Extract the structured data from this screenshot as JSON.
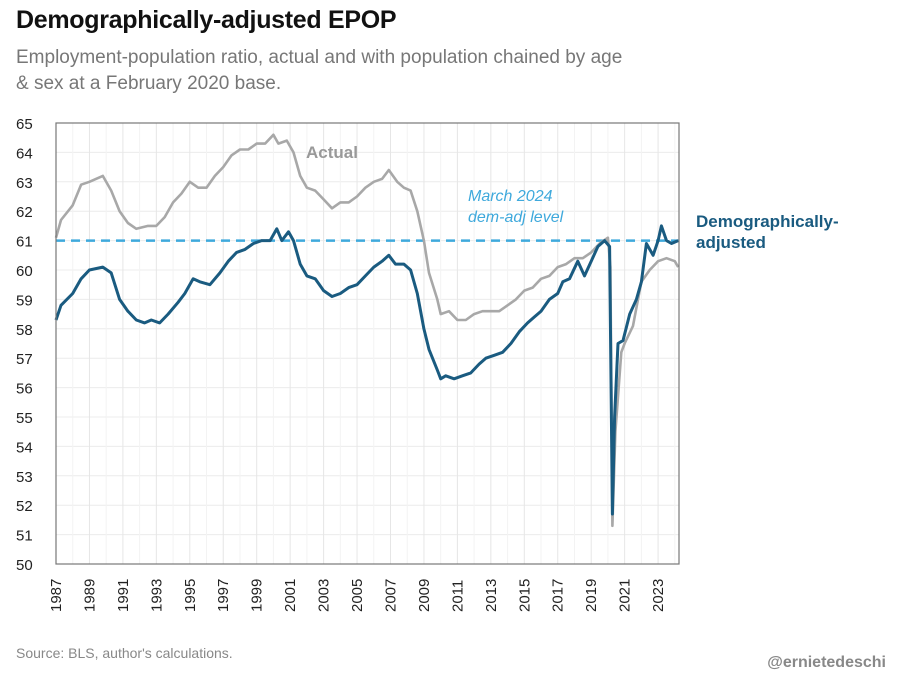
{
  "header": {
    "title": "Demographically-adjusted EPOP",
    "subtitle": "Employment-population ratio, actual and with population chained by age & sex at a February 2020 base."
  },
  "footer": {
    "source": "Source: BLS, author's calculations.",
    "handle": "@ernietedeschi"
  },
  "chart_data": {
    "type": "line",
    "title": "Demographically-adjusted EPOP",
    "xlabel": "",
    "ylabel": "",
    "xlim": [
      1987,
      2024.25
    ],
    "ylim": [
      50,
      65
    ],
    "grid": true,
    "y_ticks": [
      "50",
      "51",
      "52",
      "53",
      "54",
      "55",
      "56",
      "57",
      "58",
      "59",
      "60",
      "61",
      "62",
      "63",
      "64",
      "65"
    ],
    "x_ticks": [
      "1987",
      "1989",
      "1991",
      "1993",
      "1995",
      "1997",
      "1999",
      "2001",
      "2003",
      "2005",
      "2007",
      "2009",
      "2011",
      "2013",
      "2015",
      "2017",
      "2019",
      "2021",
      "2023"
    ],
    "reference_line": {
      "value": 61.0,
      "label_line1": "March 2024",
      "label_line2": "dem-adj level",
      "color": "#3fa9dc"
    },
    "series": [
      {
        "name": "Actual",
        "label": "Actual",
        "color": "#a8a8a8",
        "x": [
          1987.0,
          1987.3,
          1988,
          1988.5,
          1989,
          1989.8,
          1990.3,
          1990.8,
          1991.3,
          1991.8,
          1992.5,
          1993,
          1993.5,
          1994,
          1994.5,
          1995,
          1995.5,
          1996,
          1996.5,
          1997,
          1997.5,
          1998,
          1998.5,
          1999,
          1999.5,
          2000.0,
          2000.3,
          2000.8,
          2001.2,
          2001.6,
          2002,
          2002.5,
          2003,
          2003.5,
          2004,
          2004.5,
          2005,
          2005.5,
          2006,
          2006.5,
          2006.9,
          2007.4,
          2007.8,
          2008.2,
          2008.6,
          2009,
          2009.3,
          2009.8,
          2010.0,
          2010.5,
          2011,
          2011.5,
          2012,
          2012.5,
          2013,
          2013.5,
          2014,
          2014.5,
          2015,
          2015.5,
          2016,
          2016.5,
          2017,
          2017.5,
          2018,
          2018.5,
          2019,
          2019.5,
          2020.0,
          2020.15,
          2020.27,
          2020.45,
          2020.8,
          2021,
          2021.5,
          2021.8,
          2022,
          2022.5,
          2023,
          2023.5,
          2024.0,
          2024.2
        ],
        "values": [
          61.1,
          61.7,
          62.2,
          62.9,
          63.0,
          63.2,
          62.7,
          62.0,
          61.6,
          61.4,
          61.5,
          61.5,
          61.8,
          62.3,
          62.6,
          63.0,
          62.8,
          62.8,
          63.2,
          63.5,
          63.9,
          64.1,
          64.1,
          64.3,
          64.3,
          64.6,
          64.3,
          64.4,
          64.0,
          63.2,
          62.8,
          62.7,
          62.4,
          62.1,
          62.3,
          62.3,
          62.5,
          62.8,
          63.0,
          63.1,
          63.4,
          63.0,
          62.8,
          62.7,
          62.0,
          61.0,
          59.9,
          59.0,
          58.5,
          58.6,
          58.3,
          58.3,
          58.5,
          58.6,
          58.6,
          58.6,
          58.8,
          59.0,
          59.3,
          59.4,
          59.7,
          59.8,
          60.1,
          60.2,
          60.4,
          60.4,
          60.6,
          60.9,
          61.1,
          60.1,
          51.3,
          54.5,
          57.2,
          57.5,
          58.1,
          59.0,
          59.6,
          60.0,
          60.3,
          60.4,
          60.3,
          60.1
        ]
      },
      {
        "name": "Demographically-adjusted",
        "label_line1": "Demographically-",
        "label_line2": "adjusted",
        "color": "#1a5b80",
        "x": [
          1987.0,
          1987.3,
          1988,
          1988.5,
          1989,
          1989.8,
          1990.3,
          1990.8,
          1991.3,
          1991.8,
          1992.3,
          1992.7,
          1993.2,
          1993.7,
          1994.3,
          1994.7,
          1995.2,
          1995.6,
          1996.2,
          1996.8,
          1997.3,
          1997.8,
          1998.3,
          1998.8,
          1999.3,
          1999.8,
          2000.2,
          2000.5,
          2000.9,
          2001.2,
          2001.6,
          2002,
          2002.5,
          2003,
          2003.5,
          2004,
          2004.5,
          2005,
          2005.5,
          2006,
          2006.5,
          2006.9,
          2007.3,
          2007.8,
          2008.2,
          2008.6,
          2009,
          2009.3,
          2009.8,
          2010,
          2010.3,
          2010.8,
          2011.3,
          2011.8,
          2012.3,
          2012.7,
          2013.2,
          2013.7,
          2014.2,
          2014.7,
          2015.2,
          2015.6,
          2016,
          2016.5,
          2017,
          2017.3,
          2017.7,
          2018.2,
          2018.6,
          2019,
          2019.4,
          2019.8,
          2020.1,
          2020.27,
          2020.4,
          2020.6,
          2020.9,
          2021.3,
          2021.7,
          2022,
          2022.3,
          2022.7,
          2023.0,
          2023.2,
          2023.5,
          2023.8,
          2024.2
        ],
        "values": [
          58.3,
          58.8,
          59.2,
          59.7,
          60.0,
          60.1,
          59.9,
          59.0,
          58.6,
          58.3,
          58.2,
          58.3,
          58.2,
          58.5,
          58.9,
          59.2,
          59.7,
          59.6,
          59.5,
          59.9,
          60.3,
          60.6,
          60.7,
          60.9,
          61.0,
          61.0,
          61.4,
          61.0,
          61.3,
          61.0,
          60.2,
          59.8,
          59.7,
          59.3,
          59.1,
          59.2,
          59.4,
          59.5,
          59.8,
          60.1,
          60.3,
          60.5,
          60.2,
          60.2,
          60.0,
          59.2,
          58.0,
          57.3,
          56.6,
          56.3,
          56.4,
          56.3,
          56.4,
          56.5,
          56.8,
          57.0,
          57.1,
          57.2,
          57.5,
          57.9,
          58.2,
          58.4,
          58.6,
          59.0,
          59.2,
          59.6,
          59.7,
          60.3,
          59.8,
          60.3,
          60.8,
          61.0,
          60.8,
          51.7,
          55.0,
          57.5,
          57.6,
          58.5,
          59.0,
          59.6,
          60.9,
          60.5,
          61.0,
          61.5,
          61.0,
          60.9,
          61.0
        ]
      }
    ]
  }
}
